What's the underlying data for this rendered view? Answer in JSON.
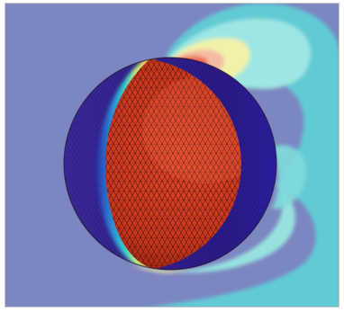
{
  "image": {
    "subject": "meshed-sphere",
    "colors": {
      "background": "#7c86c1",
      "sphere_fill": "#c8341c",
      "mesh_line": "#3a0c06",
      "shadow_side": "#2a1a88",
      "contour_cyan": "#62d2d8",
      "contour_light": "#9de8e6",
      "contour_yellow": "#f1f3a6",
      "contour_orange": "#f3b9a0",
      "contour_red": "#f06b5a"
    }
  }
}
